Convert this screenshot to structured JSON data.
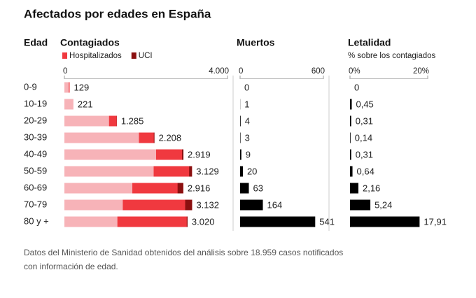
{
  "title": "Afectados por edades en España",
  "category_label": "Edad",
  "categories": [
    "0-9",
    "10-19",
    "20-29",
    "30-39",
    "40-49",
    "50-59",
    "60-69",
    "70-79",
    "80 y +"
  ],
  "footnote": [
    "Datos del Ministerio de Sanidad obtenidos del análisis sobre 18.959 casos notificados",
    "con información de edad."
  ],
  "chart_data": [
    {
      "type": "overlay-bar",
      "title": "Contagiados",
      "color": "#f7b3b8",
      "values": [
        129,
        221,
        1285,
        2208,
        2919,
        3129,
        2916,
        3132,
        3020
      ],
      "value_labels": [
        "129",
        "221",
        "1.285",
        "2.208",
        "2.919",
        "3.129",
        "2.916",
        "3.132",
        "3.020"
      ],
      "series": [
        {
          "name": "Hospitalizados",
          "color": "#f0393f",
          "values": [
            20,
            0,
            190,
            380,
            670,
            940,
            1250,
            1700,
            1720
          ]
        },
        {
          "name": "UCI",
          "color": "#8b1010",
          "values": [
            0,
            0,
            5,
            15,
            35,
            70,
            140,
            170,
            20
          ]
        }
      ],
      "xlim": [
        0,
        4000
      ],
      "xticks": [
        0,
        {
          "value": 4000,
          "label": "4.000"
        }
      ]
    },
    {
      "type": "bar",
      "title": "Muertos",
      "color": "#000000",
      "values": [
        0,
        1,
        4,
        3,
        9,
        20,
        63,
        164,
        541
      ],
      "xlim": [
        0,
        600
      ],
      "xticks": [
        0,
        600
      ]
    },
    {
      "type": "bar",
      "title": "Letalidad",
      "subtitle": "% sobre los contagiados",
      "color": "#000000",
      "values": [
        0,
        0.45,
        0.31,
        0.14,
        0.31,
        0.64,
        2.16,
        5.24,
        17.91
      ],
      "value_labels": [
        "0",
        "0,45",
        "0,31",
        "0,14",
        "0,31",
        "0,64",
        "2,16",
        "5,24",
        "17,91"
      ],
      "xlim": [
        0,
        20
      ],
      "xticks": [
        {
          "value": 0,
          "label": "0%"
        },
        {
          "value": 20,
          "label": "20%"
        }
      ]
    }
  ]
}
